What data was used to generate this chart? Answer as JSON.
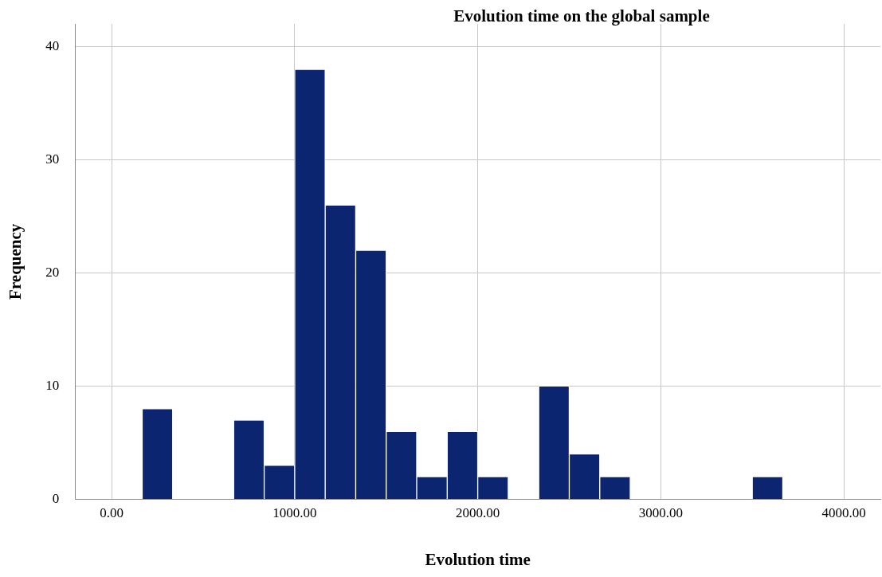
{
  "chart_data": {
    "type": "histogram",
    "title": "Evolution time on the global sample",
    "xlabel": "Evolution time",
    "ylabel": "Frequency",
    "bins": [
      166.67,
      333.33,
      500,
      666.67,
      833.33,
      1000,
      1166.67,
      1333.33,
      1500,
      1666.67,
      1833.33,
      2000,
      2166.67,
      2333.33,
      2500,
      2666.67,
      2833.33,
      3000,
      3166.67,
      3333.33,
      3500,
      3666.67
    ],
    "values": [
      8,
      0,
      0,
      7,
      3,
      38,
      26,
      22,
      6,
      2,
      6,
      2,
      0,
      10,
      4,
      2,
      0,
      0,
      0,
      0,
      2
    ],
    "color": "#0b2570",
    "xlim": [
      -200,
      4200
    ],
    "xticks": [
      {
        "value": 0,
        "label": "0.00"
      },
      {
        "value": 1000,
        "label": "1000.00"
      },
      {
        "value": 2000,
        "label": "2000.00"
      },
      {
        "value": 3000,
        "label": "3000.00"
      },
      {
        "value": 4000,
        "label": "4000.00"
      }
    ],
    "ylim": [
      0,
      42
    ],
    "yticks": [
      0,
      10,
      20,
      30,
      40
    ],
    "grid": true
  }
}
